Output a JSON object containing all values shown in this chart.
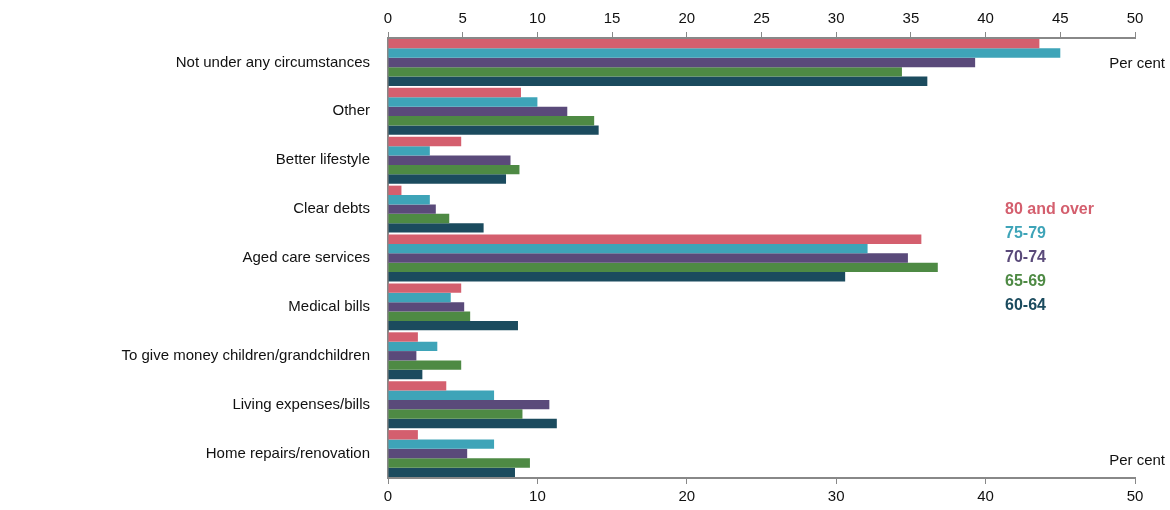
{
  "chart_data": {
    "type": "bar",
    "orientation": "horizontal",
    "xlabel": "Per cent",
    "x2label": "Per cent",
    "categories": [
      "Not under any circumstances",
      "Other",
      "Better lifestyle",
      "Clear debts",
      "Aged care services",
      "Medical bills",
      "To give money children/grandchildren",
      "Living expenses/bills",
      "Home repairs/renovation"
    ],
    "series": [
      {
        "name": "80 and over",
        "color": "#d45f6e",
        "values": [
          43.6,
          8.9,
          4.9,
          0.9,
          35.7,
          4.9,
          2.0,
          3.9,
          2.0
        ]
      },
      {
        "name": "75-79",
        "color": "#3ea4b8",
        "values": [
          45.0,
          10.0,
          2.8,
          2.8,
          32.1,
          4.2,
          3.3,
          7.1,
          7.1
        ]
      },
      {
        "name": "70-74",
        "color": "#5a4a7a",
        "values": [
          39.3,
          12.0,
          8.2,
          3.2,
          34.8,
          5.1,
          1.9,
          10.8,
          5.3
        ]
      },
      {
        "name": "65-69",
        "color": "#4e8a44",
        "values": [
          34.4,
          13.8,
          8.8,
          4.1,
          36.8,
          5.5,
          4.9,
          9.0,
          9.5
        ]
      },
      {
        "name": "60-64",
        "color": "#1b4b5e",
        "values": [
          36.1,
          14.1,
          7.9,
          6.4,
          30.6,
          8.7,
          2.3,
          11.3,
          8.5
        ]
      }
    ],
    "xlim": [
      0,
      50
    ],
    "xticks": [
      0,
      10,
      20,
      30,
      40,
      50
    ],
    "x2lim": [
      0,
      50
    ],
    "x2ticks": [
      0,
      5,
      10,
      15,
      20,
      25,
      30,
      35,
      40,
      45,
      50
    ],
    "grid": false,
    "legend": "right"
  }
}
